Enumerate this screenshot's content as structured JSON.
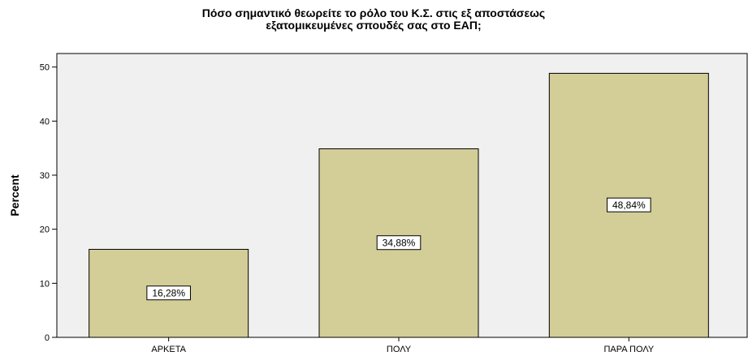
{
  "chart_data": {
    "type": "bar",
    "title": "Πόσο σημαντικό θεωρείτε το ρόλο του Κ.Σ. στις εξ αποστάσεως\nεξατομικευμένες σπουδές σας στο ΕΑΠ;",
    "xlabel": "",
    "ylabel": "Percent",
    "categories": [
      "ΑΡΚΕΤΑ",
      "ΠΟΛΥ",
      "ΠΑΡΑ ΠΟΛΥ"
    ],
    "values": [
      16.28,
      34.88,
      48.84
    ],
    "data_labels": [
      "16,28%",
      "34,88%",
      "48,84%"
    ],
    "ylim": [
      0,
      52.5
    ],
    "yticks": [
      0,
      10,
      20,
      30,
      40,
      50
    ],
    "grid": false,
    "bar_color": "#d3ce97",
    "plot_background": "#f0f0f0"
  }
}
